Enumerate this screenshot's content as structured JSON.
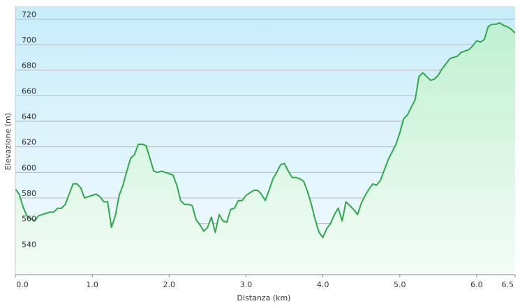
{
  "chart_data": {
    "type": "area",
    "title": "",
    "xlabel": "Distanza  (km)",
    "ylabel": "Elevazione (m)",
    "xlim": [
      0,
      6.5
    ],
    "ylim": [
      520,
      730
    ],
    "x_ticks": [
      0,
      1,
      2,
      3,
      4,
      5,
      6,
      6.5
    ],
    "x_tick_labels": [
      "0.0",
      "1.0",
      "2.0",
      "3.0",
      "4.0",
      "5.0",
      "6.0",
      "6.5"
    ],
    "y_ticks": [
      540,
      560,
      580,
      600,
      620,
      640,
      660,
      680,
      700,
      720
    ],
    "y_tick_labels": [
      "540",
      "560",
      "580",
      "600",
      "620",
      "640",
      "660",
      "680",
      "700",
      "720"
    ],
    "grid": true,
    "line_color": "#2ea84a",
    "fill_top_color": "#bff0d0",
    "fill_bottom_color": "#f3fcf6",
    "plot_bg_top": "#c6ecfa",
    "plot_bg_bottom": "#f4fbfe",
    "series": [
      {
        "x": [
          0.0,
          0.05,
          0.1,
          0.15,
          0.2,
          0.25,
          0.3,
          0.35,
          0.4,
          0.45,
          0.5,
          0.55,
          0.6,
          0.65,
          0.7,
          0.75,
          0.8,
          0.85,
          0.9,
          0.95,
          1.0,
          1.05,
          1.1,
          1.15,
          1.2,
          1.25,
          1.3,
          1.35,
          1.4,
          1.45,
          1.5,
          1.55,
          1.6,
          1.65,
          1.7,
          1.75,
          1.8,
          1.85,
          1.9,
          1.95,
          2.0,
          2.05,
          2.1,
          2.15,
          2.2,
          2.25,
          2.3,
          2.35,
          2.4,
          2.45,
          2.5,
          2.55,
          2.6,
          2.65,
          2.7,
          2.75,
          2.8,
          2.85,
          2.9,
          2.95,
          3.0,
          3.05,
          3.1,
          3.15,
          3.2,
          3.25,
          3.3,
          3.35,
          3.4,
          3.45,
          3.5,
          3.55,
          3.6,
          3.65,
          3.7,
          3.75,
          3.8,
          3.85,
          3.9,
          3.95,
          4.0,
          4.05,
          4.1,
          4.15,
          4.2,
          4.25,
          4.3,
          4.35,
          4.4,
          4.45,
          4.5,
          4.55,
          4.6,
          4.65,
          4.7,
          4.75,
          4.8,
          4.85,
          4.9,
          4.95,
          5.0,
          5.05,
          5.1,
          5.15,
          5.2,
          5.25,
          5.3,
          5.35,
          5.4,
          5.45,
          5.5,
          5.55,
          5.6,
          5.65,
          5.7,
          5.75,
          5.8,
          5.85,
          5.9,
          5.95,
          6.0,
          6.05,
          6.1,
          6.15,
          6.2,
          6.25,
          6.3,
          6.35,
          6.4,
          6.45,
          6.5
        ],
        "values": [
          587,
          583,
          573,
          566,
          564,
          562,
          566,
          567,
          568,
          569,
          569,
          572,
          572,
          575,
          583,
          591,
          591,
          588,
          580,
          581,
          582,
          583,
          581,
          577,
          577,
          557,
          566,
          582,
          590,
          601,
          611,
          614,
          622,
          622,
          621,
          611,
          601,
          600,
          601,
          600,
          599,
          598,
          590,
          578,
          575,
          575,
          574,
          563,
          559,
          554,
          557,
          565,
          553,
          567,
          562,
          561,
          571,
          572,
          578,
          578,
          582,
          584,
          586,
          586,
          583,
          578,
          586,
          595,
          600,
          606,
          607,
          601,
          596,
          596,
          595,
          593,
          585,
          575,
          563,
          553,
          549,
          556,
          560,
          567,
          572,
          562,
          577,
          574,
          571,
          567,
          576,
          582,
          587,
          591,
          590,
          594,
          602,
          610,
          616,
          622,
          631,
          642,
          645,
          651,
          657,
          675,
          678,
          675,
          672,
          673,
          676,
          681,
          685,
          689,
          690,
          691,
          694,
          695,
          696,
          699,
          703,
          702,
          704,
          714,
          716,
          716,
          717,
          715,
          714,
          712,
          709
        ]
      }
    ]
  }
}
